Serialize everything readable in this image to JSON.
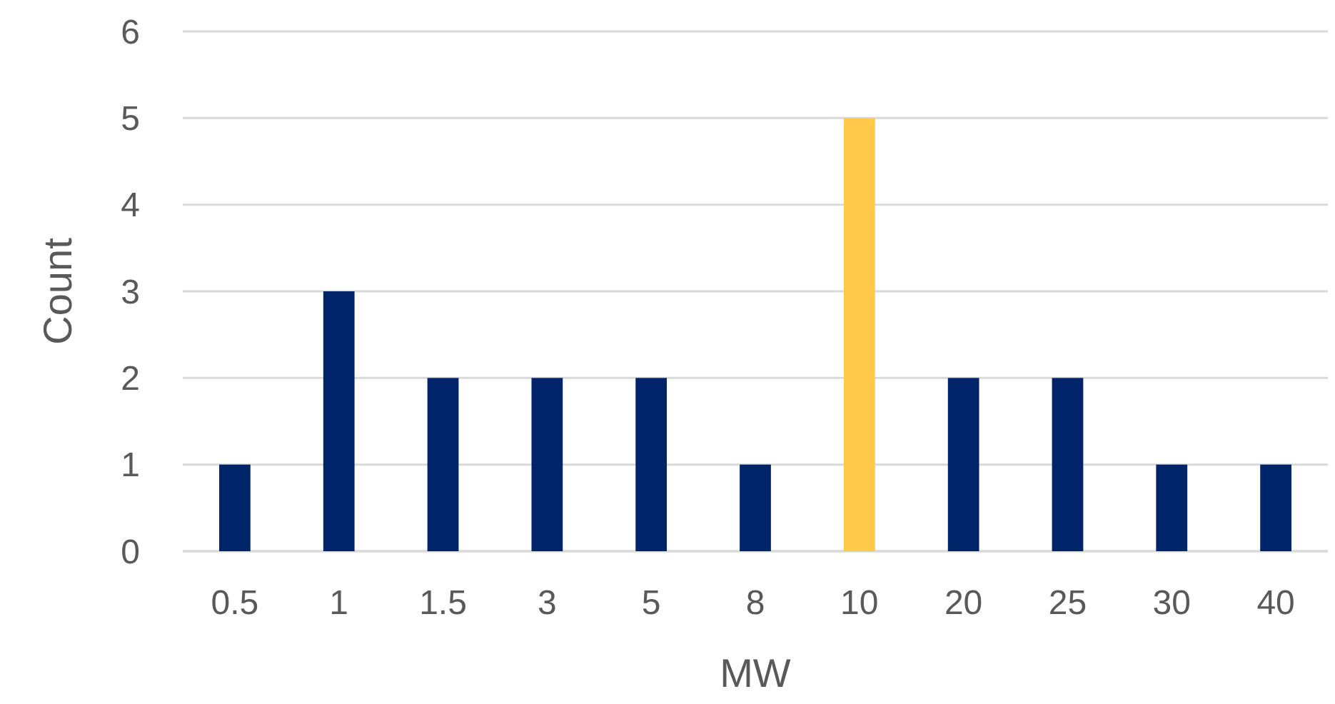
{
  "chart_data": {
    "type": "bar",
    "xlabel": "MW",
    "ylabel": "Count",
    "categories": [
      "0.5",
      "1",
      "1.5",
      "3",
      "5",
      "8",
      "10",
      "20",
      "25",
      "30",
      "40"
    ],
    "values": [
      1,
      3,
      2,
      2,
      2,
      1,
      5,
      2,
      2,
      1,
      1
    ],
    "colors": [
      "#002469",
      "#002469",
      "#002469",
      "#002469",
      "#002469",
      "#002469",
      "#ffc94a",
      "#002469",
      "#002469",
      "#002469",
      "#002469"
    ],
    "ylim": [
      0,
      6
    ],
    "yticks": [
      0,
      1,
      2,
      3,
      4,
      5,
      6
    ],
    "grid": "y"
  }
}
